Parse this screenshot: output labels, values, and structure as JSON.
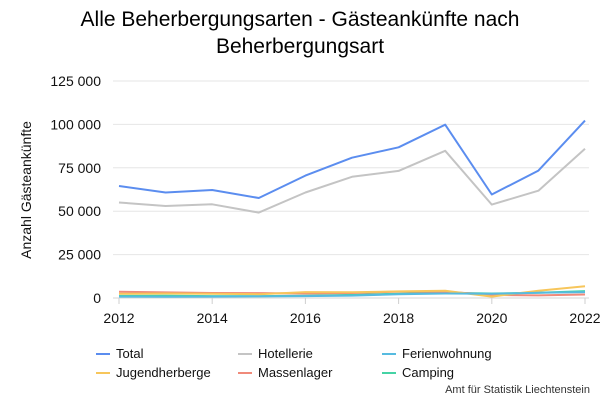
{
  "chart_data": {
    "type": "line",
    "title": "Alle Beherbergungsarten - Gästeankünfte nach Beherbergungsart",
    "xlabel": "",
    "ylabel": "Anzahl Gästeankünfte",
    "x": [
      2012,
      2013,
      2014,
      2015,
      2016,
      2017,
      2018,
      2019,
      2020,
      2021,
      2022
    ],
    "xticks": [
      "2012",
      "2014",
      "2016",
      "2018",
      "2020",
      "2022"
    ],
    "yticks": [
      "0",
      "25 000",
      "50 000",
      "75 000",
      "100 000",
      "125 000"
    ],
    "ylim": [
      0,
      125000
    ],
    "grid": true,
    "legend_position": "bottom",
    "series": [
      {
        "name": "Total",
        "color": "#5b8def",
        "values": [
          64500,
          60800,
          62200,
          57600,
          70500,
          80800,
          86800,
          99800,
          59600,
          73400,
          102200
        ]
      },
      {
        "name": "Hotellerie",
        "color": "#c4c4c4",
        "values": [
          55000,
          53000,
          54000,
          49200,
          60800,
          69800,
          73200,
          84800,
          53800,
          61800,
          86000
        ]
      },
      {
        "name": "Ferienwohnung",
        "color": "#56bbe0",
        "values": [
          800,
          700,
          800,
          900,
          1100,
          1400,
          2200,
          2600,
          2400,
          3000,
          3400
        ]
      },
      {
        "name": "Jugendherberge",
        "color": "#f7c65b",
        "values": [
          2400,
          2600,
          2400,
          2200,
          3400,
          3300,
          3800,
          4200,
          800,
          4200,
          6800
        ]
      },
      {
        "name": "Massenlager",
        "color": "#f08a7a",
        "values": [
          3600,
          3200,
          2900,
          2800,
          2600,
          2900,
          3700,
          3700,
          1800,
          1500,
          2000
        ]
      },
      {
        "name": "Camping",
        "color": "#45d3a5",
        "values": [
          1200,
          1300,
          1100,
          1100,
          1300,
          1800,
          2500,
          3000,
          2600,
          3000,
          4000
        ]
      }
    ]
  },
  "credit": "Amt für Statistik Liechtenstein"
}
